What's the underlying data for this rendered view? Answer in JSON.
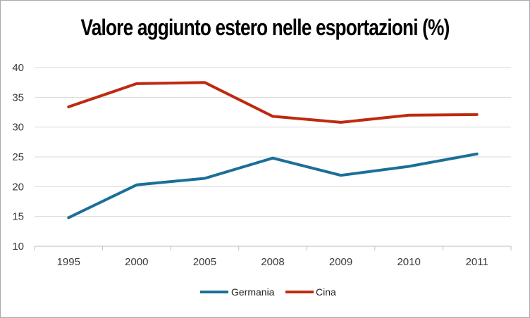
{
  "chart_data": {
    "type": "line",
    "title": "Valore aggiunto estero nelle esportazioni (%)",
    "xlabel": "",
    "ylabel": "",
    "categories": [
      "1995",
      "2000",
      "2005",
      "2008",
      "2009",
      "2010",
      "2011"
    ],
    "yticks": [
      "10",
      "15",
      "20",
      "25",
      "30",
      "35",
      "40"
    ],
    "ylim": [
      10,
      40
    ],
    "grid": true,
    "legend_position": "bottom",
    "series": [
      {
        "name": "Germania",
        "color": "#1b6f98",
        "values": [
          14.8,
          20.3,
          21.4,
          24.8,
          21.9,
          23.4,
          25.5
        ]
      },
      {
        "name": "Cina",
        "color": "#be2a10",
        "values": [
          33.4,
          37.3,
          37.5,
          31.8,
          30.8,
          32.0,
          32.1
        ]
      }
    ]
  }
}
